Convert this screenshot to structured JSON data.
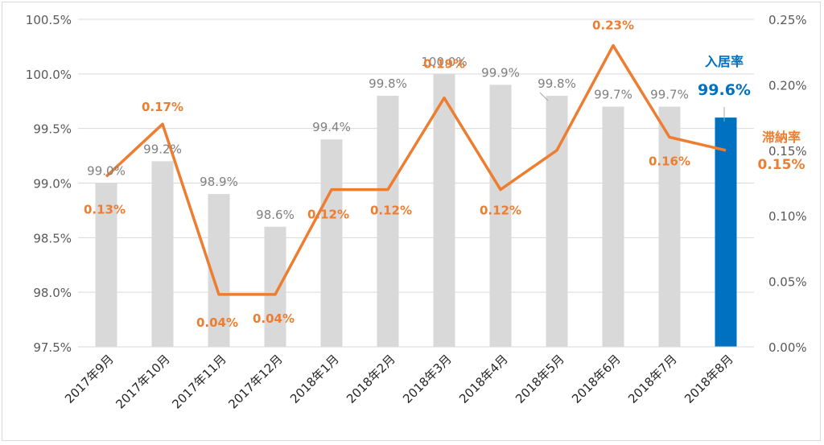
{
  "chart_data": {
    "type": "bar+line",
    "categories": [
      "2017年9月",
      "2017年10月",
      "2017年11月",
      "2017年12月",
      "2018年1月",
      "2018年2月",
      "2018年3月",
      "2018年4月",
      "2018年5月",
      "2018年6月",
      "2018年7月",
      "2018年8月"
    ],
    "series": [
      {
        "name": "入居率",
        "type": "bar",
        "axis": "left",
        "values": [
          99.0,
          99.2,
          98.9,
          98.6,
          99.4,
          99.8,
          100.0,
          99.9,
          99.8,
          99.7,
          99.7,
          99.6
        ],
        "labels": [
          "99.0%",
          "99.2%",
          "98.9%",
          "98.6%",
          "99.4%",
          "99.8%",
          "100.0%",
          "99.9%",
          "99.8%",
          "99.7%",
          "99.7%",
          "99.6%"
        ],
        "color": "#d9d9d9",
        "highlight_color": "#0070c0"
      },
      {
        "name": "滞納率",
        "type": "line",
        "axis": "right",
        "values": [
          0.13,
          0.17,
          0.04,
          0.04,
          0.12,
          0.12,
          0.19,
          0.12,
          0.15,
          0.23,
          0.16,
          0.15
        ],
        "labels": [
          "0.13%",
          "0.17%",
          "0.04%",
          "0.04%",
          "0.12%",
          "0.12%",
          "0.19%",
          "0.12%",
          "",
          "0.23%",
          "0.16%",
          "0.15%"
        ],
        "color": "#ed7d31"
      }
    ],
    "y_left": {
      "ylim": [
        97.5,
        100.5
      ],
      "ticks": [
        97.5,
        98.0,
        98.5,
        99.0,
        99.5,
        100.0,
        100.5
      ],
      "tick_labels": [
        "97.5%",
        "98.0%",
        "98.5%",
        "99.0%",
        "99.5%",
        "100.0%",
        "100.5%"
      ]
    },
    "y_right": {
      "ylim": [
        0.0,
        0.25
      ],
      "ticks": [
        0.0,
        0.05,
        0.1,
        0.15,
        0.2,
        0.25
      ],
      "tick_labels": [
        "0.00%",
        "0.05%",
        "0.10%",
        "0.15%",
        "0.20%",
        "0.25%"
      ]
    },
    "grid": true,
    "annotations": {
      "bar_name": "入居率",
      "bar_value": "99.6%",
      "line_name": "滞納率",
      "line_value": "0.15%"
    },
    "colors": {
      "bar": "#d9d9d9",
      "bar_highlight": "#0070c0",
      "line": "#ed7d31",
      "bar_label": "#7f7f7f",
      "axis_label": "#595959",
      "grid": "#d9d9d9"
    }
  }
}
